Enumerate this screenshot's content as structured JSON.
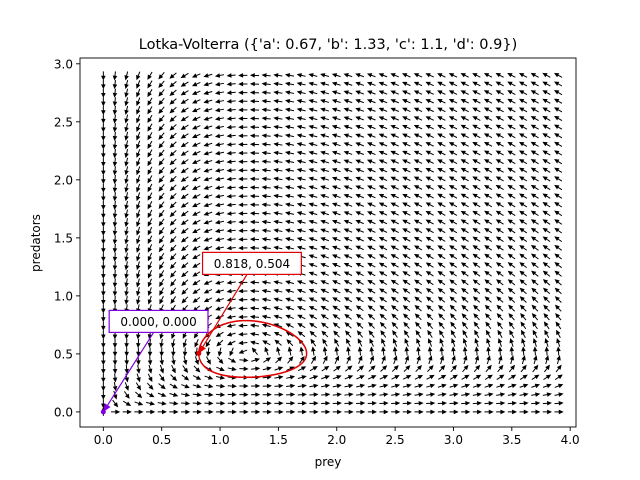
{
  "chart_data": {
    "type": "quiver",
    "title": "Lotka-Volterra ({'a': 0.67, 'b': 1.33, 'c': 1.1, 'd': 0.9})",
    "xlabel": "prey",
    "ylabel": "predators",
    "xlim": [
      -0.2,
      4.05
    ],
    "ylim": [
      -0.13,
      3.05
    ],
    "x_ticks": [
      0.0,
      0.5,
      1.0,
      1.5,
      2.0,
      2.5,
      3.0,
      3.5,
      4.0
    ],
    "x_tick_labels": [
      "0.0",
      "0.5",
      "1.0",
      "1.5",
      "2.0",
      "2.5",
      "3.0",
      "3.5",
      "4.0"
    ],
    "y_ticks": [
      0.0,
      0.5,
      1.0,
      1.5,
      2.0,
      2.5,
      3.0
    ],
    "y_tick_labels": [
      "0.0",
      "0.5",
      "1.0",
      "1.5",
      "2.0",
      "2.5",
      "3.0"
    ],
    "params": {
      "a": 0.67,
      "b": 1.33,
      "c": 1.1,
      "d": 0.9
    },
    "vector_field": {
      "x_range": [
        0.0,
        3.9
      ],
      "y_range": [
        0.0,
        2.9
      ],
      "n": 40,
      "color": "#000000"
    },
    "series": [
      {
        "initial": [
          0.818,
          0.504
        ],
        "color": "#e00000",
        "steps": 20000,
        "dt": 0.001
      },
      {
        "initial": [
          0.0,
          0.0
        ],
        "color": "#8000e0",
        "steps": 60000,
        "dt": 0.001
      }
    ],
    "annotations": [
      {
        "text": "0.818, 0.504",
        "point": [
          0.818,
          0.504
        ],
        "label_pos": [
          0.85,
          1.28
        ],
        "color": "#e00000"
      },
      {
        "text": "0.000, 0.000",
        "point": [
          0.0,
          0.0
        ],
        "label_pos": [
          0.05,
          0.78
        ],
        "color": "#8000e0"
      }
    ],
    "grid": false
  }
}
